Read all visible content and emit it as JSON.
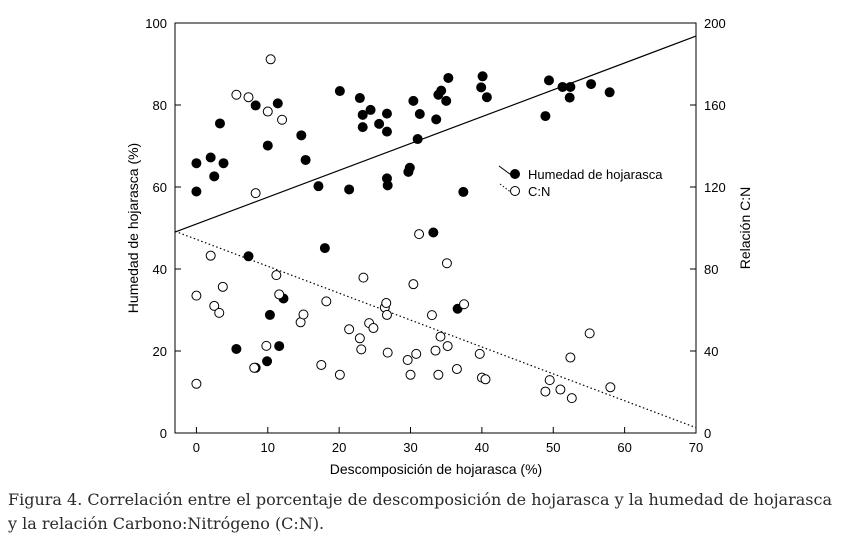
{
  "chart_data": {
    "type": "scatter",
    "xlabel": "Descomposición de hojarasca (%)",
    "ylabel": "Humedad de hojarasca (%)",
    "y2label": "Relación C:N",
    "xlim": [
      -3,
      70
    ],
    "ylim": [
      0,
      100
    ],
    "y2lim": [
      0,
      200
    ],
    "xticks": [
      0,
      10,
      20,
      30,
      40,
      50,
      60,
      70
    ],
    "yticks": [
      0,
      20,
      40,
      60,
      80,
      100
    ],
    "y2ticks": [
      0,
      40,
      80,
      120,
      160,
      200
    ],
    "grid": false,
    "legend_position": "right-middle",
    "series": [
      {
        "name": "Humedad de hojarasca",
        "axis": "left",
        "marker": "filled-circle",
        "x": [
          0,
          0,
          2,
          2.5,
          3.3,
          3.8,
          5.6,
          7.3,
          8.3,
          8.3,
          9.9,
          10,
          10.3,
          11.4,
          11.6,
          12.2,
          14.7,
          15.3,
          17.1,
          18,
          20.1,
          21.4,
          22.9,
          23.3,
          23.3,
          24.4,
          25.6,
          26.7,
          26.7,
          26.7,
          26.8,
          29.7,
          29.9,
          30.4,
          31,
          31.3,
          33.2,
          33.6,
          33.9,
          34.3,
          35,
          35.3,
          36.6,
          37.4,
          39.9,
          40.1,
          40.7,
          48.9,
          49.4,
          51.3,
          52.3,
          52.4,
          55.3,
          57.9
        ],
        "y": [
          65.8,
          58.9,
          67.2,
          62.6,
          75.5,
          65.8,
          20.5,
          43.1,
          79.9,
          15.9,
          17.5,
          70.1,
          28.8,
          80.4,
          21.2,
          32.8,
          72.6,
          66.6,
          60.2,
          45.1,
          83.4,
          59.4,
          81.7,
          77.6,
          74.6,
          78.8,
          75.4,
          77.9,
          73.5,
          62.1,
          60.4,
          63.7,
          64.7,
          81,
          71.7,
          77.8,
          48.9,
          76.5,
          82.5,
          83.5,
          81,
          86.6,
          30.3,
          58.8,
          84.3,
          87,
          81.9,
          77.3,
          86,
          84.4,
          81.8,
          84.4,
          85.1,
          83.1
        ]
      },
      {
        "name": "C:N",
        "axis": "right",
        "marker": "open-circle",
        "x": [
          0,
          0,
          2,
          2.5,
          3.2,
          3.7,
          5.6,
          7.3,
          8.1,
          8.3,
          9.8,
          10,
          10.4,
          11.2,
          11.6,
          12,
          14.6,
          15,
          17.5,
          18.2,
          20.1,
          21.4,
          22.9,
          23.1,
          23.4,
          24.2,
          24.8,
          26.4,
          26.6,
          26.7,
          26.8,
          29.6,
          30,
          30.4,
          30.8,
          31.2,
          33,
          33.5,
          33.9,
          34.2,
          35.1,
          35.2,
          36.5,
          37.5,
          39.7,
          40,
          40.5,
          48.9,
          49.5,
          51,
          52.4,
          52.6,
          55.1,
          58
        ],
        "y": [
          67,
          24,
          86.5,
          62,
          58.6,
          71.3,
          165,
          163.8,
          31.8,
          117,
          42.5,
          156.8,
          182.3,
          77,
          67.6,
          152.8,
          54,
          57.8,
          33.2,
          64.2,
          28.4,
          50.6,
          46.2,
          40.8,
          75.8,
          53.6,
          51.2,
          61.2,
          63.4,
          57.6,
          39.2,
          35.6,
          28.4,
          72.6,
          38.6,
          97,
          57.5,
          40.2,
          28.4,
          47,
          82.8,
          42.4,
          31.2,
          62.8,
          38.6,
          27,
          26.2,
          20.2,
          25.8,
          21.2,
          36.8,
          17,
          48.6,
          22.3
        ]
      }
    ],
    "trend_lines": [
      {
        "series": "Humedad de hojarasca",
        "style": "solid",
        "axis": "left",
        "x": [
          -3,
          70
        ],
        "y": [
          49,
          96.8
        ]
      },
      {
        "series": "C:N",
        "style": "dotted",
        "axis": "right",
        "x": [
          -3,
          70
        ],
        "y": [
          98.4,
          2.6
        ]
      }
    ]
  },
  "caption": {
    "line1": "Figura 4. Correlación entre el porcentaje de descomposición de hojarasca y la humedad de hojarasca",
    "line2": "y la relación Carbono:Nitrógeno (C:N)."
  }
}
